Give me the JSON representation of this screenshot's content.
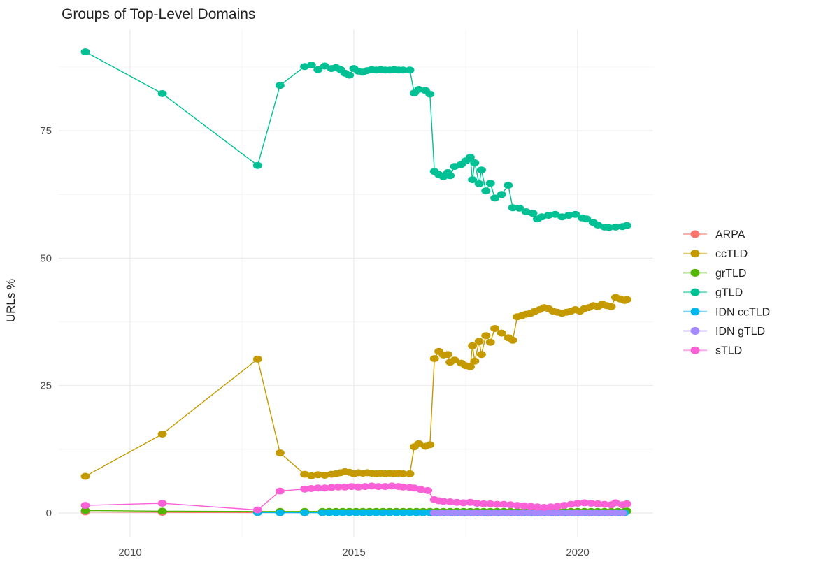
{
  "title": "Groups of Top-Level Domains",
  "y_axis": {
    "label": "URLs %",
    "tick_labels": [
      "0",
      "25",
      "50",
      "75"
    ]
  },
  "x_axis": {
    "tick_labels": [
      "2010",
      "2015",
      "2020"
    ]
  },
  "legend": {
    "items": [
      {
        "label": "ARPA",
        "color": "#F8766D"
      },
      {
        "label": "ccTLD",
        "color": "#C49A00"
      },
      {
        "label": "grTLD",
        "color": "#53B400"
      },
      {
        "label": "gTLD",
        "color": "#00C094"
      },
      {
        "label": "IDN ccTLD",
        "color": "#00B6EB"
      },
      {
        "label": "IDN gTLD",
        "color": "#A58AFF"
      },
      {
        "label": "sTLD",
        "color": "#FB61D7"
      }
    ]
  },
  "chart_data": {
    "type": "scatter",
    "title": "Groups of Top-Level Domains",
    "xlabel": "",
    "ylabel": "URLs %",
    "xlim": [
      2008.4,
      2021.7
    ],
    "ylim": [
      -4.5,
      95
    ],
    "x_ticks": [
      2010,
      2015,
      2020
    ],
    "x_minor_ticks": [
      2012.5,
      2017.5
    ],
    "y_ticks": [
      0,
      25,
      50,
      75
    ],
    "y_minor_ticks": [
      12.5,
      37.5,
      62.5,
      87.5
    ],
    "grid": "major+minor",
    "legend_position": "right",
    "marker": "point-with-line",
    "series": [
      {
        "name": "ARPA",
        "color": "#F8766D",
        "points": [
          [
            2009.0,
            0.2
          ],
          [
            2010.72,
            0.12
          ],
          [
            2012.85,
            0.08
          ]
        ]
      },
      {
        "name": "ccTLD",
        "color": "#C49A00",
        "points": [
          [
            2009.0,
            7.2
          ],
          [
            2010.72,
            15.5
          ],
          [
            2012.85,
            30.2
          ],
          [
            2013.35,
            11.8
          ],
          [
            2013.9,
            7.6
          ],
          [
            2014.05,
            7.3
          ],
          [
            2014.2,
            7.5
          ],
          [
            2014.35,
            7.4
          ],
          [
            2014.5,
            7.6
          ],
          [
            2014.6,
            7.7
          ],
          [
            2014.7,
            7.9
          ],
          [
            2014.8,
            8.1
          ],
          [
            2014.9,
            8.0
          ],
          [
            2015.0,
            7.7
          ],
          [
            2015.1,
            7.9
          ],
          [
            2015.2,
            7.8
          ],
          [
            2015.3,
            7.9
          ],
          [
            2015.4,
            7.8
          ],
          [
            2015.5,
            7.7
          ],
          [
            2015.6,
            7.8
          ],
          [
            2015.7,
            7.7
          ],
          [
            2015.8,
            7.8
          ],
          [
            2015.9,
            7.7
          ],
          [
            2016.0,
            7.8
          ],
          [
            2016.1,
            7.7
          ],
          [
            2016.25,
            7.7
          ],
          [
            2016.35,
            13.0
          ],
          [
            2016.45,
            13.6
          ],
          [
            2016.6,
            13.1
          ],
          [
            2016.7,
            13.4
          ],
          [
            2016.8,
            30.3
          ],
          [
            2016.9,
            31.7
          ],
          [
            2017.0,
            31.0
          ],
          [
            2017.1,
            31.1
          ],
          [
            2017.15,
            29.6
          ],
          [
            2017.25,
            30.0
          ],
          [
            2017.4,
            29.4
          ],
          [
            2017.5,
            28.9
          ],
          [
            2017.6,
            28.7
          ],
          [
            2017.65,
            32.8
          ],
          [
            2017.7,
            29.8
          ],
          [
            2017.8,
            33.7
          ],
          [
            2017.85,
            31.1
          ],
          [
            2017.95,
            34.8
          ],
          [
            2018.05,
            33.5
          ],
          [
            2018.15,
            36.2
          ],
          [
            2018.3,
            35.3
          ],
          [
            2018.45,
            34.4
          ],
          [
            2018.55,
            33.9
          ],
          [
            2018.65,
            38.5
          ],
          [
            2018.75,
            38.7
          ],
          [
            2018.85,
            39.0
          ],
          [
            2018.95,
            39.2
          ],
          [
            2019.05,
            39.6
          ],
          [
            2019.15,
            39.9
          ],
          [
            2019.25,
            40.3
          ],
          [
            2019.35,
            40.1
          ],
          [
            2019.45,
            39.6
          ],
          [
            2019.55,
            39.4
          ],
          [
            2019.65,
            39.2
          ],
          [
            2019.75,
            39.4
          ],
          [
            2019.85,
            39.6
          ],
          [
            2019.95,
            39.9
          ],
          [
            2020.05,
            39.6
          ],
          [
            2020.15,
            40.1
          ],
          [
            2020.25,
            40.3
          ],
          [
            2020.35,
            40.7
          ],
          [
            2020.45,
            40.5
          ],
          [
            2020.55,
            41.0
          ],
          [
            2020.65,
            40.7
          ],
          [
            2020.75,
            40.5
          ],
          [
            2020.85,
            42.3
          ],
          [
            2020.95,
            42.0
          ],
          [
            2021.05,
            41.7
          ],
          [
            2021.1,
            41.9
          ]
        ]
      },
      {
        "name": "grTLD",
        "color": "#53B400",
        "points": [
          [
            2009.0,
            0.5
          ],
          [
            2010.72,
            0.35
          ],
          [
            2012.85,
            0.3
          ],
          [
            2013.35,
            0.3
          ],
          [
            2013.9,
            0.3
          ],
          [
            2021.1,
            0.4
          ]
        ],
        "runs": [
          {
            "from": 2014.3,
            "to": 2021.05,
            "step": 0.15,
            "value": 0.3
          }
        ]
      },
      {
        "name": "gTLD",
        "color": "#00C094",
        "points": [
          [
            2009.0,
            90.5
          ],
          [
            2010.72,
            82.3
          ],
          [
            2012.85,
            68.2
          ],
          [
            2013.35,
            83.9
          ],
          [
            2013.9,
            87.6
          ],
          [
            2014.05,
            87.9
          ],
          [
            2014.2,
            87.0
          ],
          [
            2014.35,
            87.7
          ],
          [
            2014.5,
            87.2
          ],
          [
            2014.6,
            87.4
          ],
          [
            2014.7,
            87.0
          ],
          [
            2014.8,
            86.3
          ],
          [
            2014.9,
            85.9
          ],
          [
            2015.0,
            87.2
          ],
          [
            2015.1,
            86.7
          ],
          [
            2015.2,
            86.5
          ],
          [
            2015.3,
            86.8
          ],
          [
            2015.4,
            87.0
          ],
          [
            2015.5,
            86.9
          ],
          [
            2015.6,
            87.0
          ],
          [
            2015.7,
            86.9
          ],
          [
            2015.8,
            86.9
          ],
          [
            2015.9,
            87.0
          ],
          [
            2016.0,
            86.9
          ],
          [
            2016.1,
            86.9
          ],
          [
            2016.25,
            86.9
          ],
          [
            2016.35,
            82.4
          ],
          [
            2016.45,
            83.1
          ],
          [
            2016.6,
            82.9
          ],
          [
            2016.7,
            82.2
          ],
          [
            2016.8,
            67.0
          ],
          [
            2016.9,
            66.4
          ],
          [
            2017.0,
            66.0
          ],
          [
            2017.1,
            66.8
          ],
          [
            2017.15,
            66.2
          ],
          [
            2017.25,
            68.0
          ],
          [
            2017.4,
            68.4
          ],
          [
            2017.5,
            69.1
          ],
          [
            2017.6,
            69.8
          ],
          [
            2017.65,
            65.4
          ],
          [
            2017.7,
            68.7
          ],
          [
            2017.8,
            64.6
          ],
          [
            2017.85,
            67.3
          ],
          [
            2017.95,
            63.2
          ],
          [
            2018.05,
            64.7
          ],
          [
            2018.15,
            61.8
          ],
          [
            2018.3,
            62.5
          ],
          [
            2018.45,
            64.3
          ],
          [
            2018.55,
            59.9
          ],
          [
            2018.7,
            59.8
          ],
          [
            2018.85,
            59.1
          ],
          [
            2019.0,
            58.8
          ],
          [
            2019.1,
            57.7
          ],
          [
            2019.2,
            58.1
          ],
          [
            2019.35,
            58.4
          ],
          [
            2019.5,
            58.6
          ],
          [
            2019.65,
            58.1
          ],
          [
            2019.8,
            58.4
          ],
          [
            2019.95,
            58.6
          ],
          [
            2020.1,
            57.9
          ],
          [
            2020.2,
            57.7
          ],
          [
            2020.35,
            57.0
          ],
          [
            2020.45,
            56.5
          ],
          [
            2020.6,
            56.1
          ],
          [
            2020.7,
            56.0
          ],
          [
            2020.85,
            56.1
          ],
          [
            2021.0,
            56.2
          ],
          [
            2021.1,
            56.4
          ]
        ]
      },
      {
        "name": "IDN ccTLD",
        "color": "#00B6EB",
        "points": [
          [
            2012.85,
            0.1
          ],
          [
            2013.35,
            0.05
          ],
          [
            2013.9,
            0.05
          ]
        ],
        "runs": [
          {
            "from": 2014.3,
            "to": 2021.1,
            "step": 0.15,
            "value": 0.05
          }
        ]
      },
      {
        "name": "IDN gTLD",
        "color": "#A58AFF",
        "points": [],
        "runs": [
          {
            "from": 2016.8,
            "to": 2021.1,
            "step": 0.15,
            "value": 0.02
          }
        ]
      },
      {
        "name": "sTLD",
        "color": "#FB61D7",
        "points": [
          [
            2009.0,
            1.5
          ],
          [
            2010.72,
            1.9
          ],
          [
            2012.85,
            0.6
          ],
          [
            2013.35,
            4.3
          ],
          [
            2013.9,
            4.7
          ],
          [
            2014.05,
            4.8
          ],
          [
            2014.2,
            4.9
          ],
          [
            2014.35,
            4.9
          ],
          [
            2014.5,
            5.0
          ],
          [
            2014.65,
            5.1
          ],
          [
            2014.8,
            5.1
          ],
          [
            2014.95,
            5.2
          ],
          [
            2015.1,
            5.1
          ],
          [
            2015.25,
            5.2
          ],
          [
            2015.4,
            5.3
          ],
          [
            2015.55,
            5.2
          ],
          [
            2015.7,
            5.2
          ],
          [
            2015.85,
            5.3
          ],
          [
            2016.0,
            5.2
          ],
          [
            2016.1,
            5.1
          ],
          [
            2016.25,
            5.0
          ],
          [
            2016.35,
            4.9
          ],
          [
            2016.5,
            4.6
          ],
          [
            2016.65,
            4.4
          ],
          [
            2016.8,
            2.6
          ],
          [
            2016.9,
            2.4
          ],
          [
            2017.0,
            2.3
          ],
          [
            2017.15,
            2.2
          ],
          [
            2017.3,
            2.1
          ],
          [
            2017.45,
            2.0
          ],
          [
            2017.6,
            2.1
          ],
          [
            2017.75,
            1.9
          ],
          [
            2017.9,
            1.8
          ],
          [
            2018.05,
            1.8
          ],
          [
            2018.2,
            1.7
          ],
          [
            2018.35,
            1.7
          ],
          [
            2018.5,
            1.6
          ],
          [
            2018.65,
            1.5
          ],
          [
            2018.8,
            1.4
          ],
          [
            2018.95,
            1.3
          ],
          [
            2019.1,
            1.2
          ],
          [
            2019.25,
            1.1
          ],
          [
            2019.4,
            1.2
          ],
          [
            2019.55,
            1.3
          ],
          [
            2019.7,
            1.5
          ],
          [
            2019.85,
            1.7
          ],
          [
            2020.0,
            1.9
          ],
          [
            2020.15,
            2.0
          ],
          [
            2020.3,
            1.9
          ],
          [
            2020.45,
            1.8
          ],
          [
            2020.6,
            1.7
          ],
          [
            2020.75,
            1.6
          ],
          [
            2020.85,
            2.0
          ],
          [
            2021.0,
            1.6
          ],
          [
            2021.1,
            1.8
          ]
        ]
      }
    ]
  },
  "style": {
    "major_grid_color": "#EBEBEB",
    "minor_grid_color": "#F4F4F4",
    "background": "#FFFFFF"
  }
}
